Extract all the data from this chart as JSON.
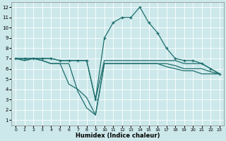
{
  "xlabel": "Humidex (Indice chaleur)",
  "xlim": [
    -0.5,
    23.5
  ],
  "ylim": [
    0.5,
    12.5
  ],
  "xticks": [
    0,
    1,
    2,
    3,
    4,
    5,
    6,
    7,
    8,
    9,
    10,
    11,
    12,
    13,
    14,
    15,
    16,
    17,
    18,
    19,
    20,
    21,
    22,
    23
  ],
  "yticks": [
    1,
    2,
    3,
    4,
    5,
    6,
    7,
    8,
    9,
    10,
    11,
    12
  ],
  "bg_color": "#cce8ea",
  "grid_color": "#b0d4d8",
  "line_color": "#1e6e6e",
  "line1_x": [
    0,
    1,
    2,
    3,
    4,
    5,
    6,
    7,
    8,
    9,
    10,
    11,
    12,
    13,
    14,
    15,
    16,
    17,
    18,
    19,
    20,
    21,
    22,
    23
  ],
  "line1_y": [
    7.0,
    7.0,
    7.0,
    7.0,
    7.0,
    6.8,
    6.8,
    6.8,
    6.8,
    3.0,
    9.0,
    10.5,
    11.0,
    11.0,
    12.0,
    10.5,
    9.5,
    8.0,
    7.0,
    6.8,
    6.8,
    6.5,
    6.0,
    5.5
  ],
  "line2_x": [
    0,
    1,
    2,
    3,
    4,
    5,
    6,
    7,
    8,
    9,
    10,
    11,
    12,
    13,
    14,
    15,
    16,
    17,
    18,
    19,
    20,
    21,
    22,
    23
  ],
  "line2_y": [
    7.0,
    7.0,
    7.0,
    7.0,
    7.0,
    6.8,
    6.8,
    6.8,
    6.8,
    3.0,
    6.8,
    6.8,
    6.8,
    6.8,
    6.8,
    6.8,
    6.8,
    6.8,
    6.8,
    6.5,
    6.5,
    6.5,
    6.0,
    5.5
  ],
  "line3_x": [
    0,
    1,
    2,
    3,
    4,
    5,
    6,
    7,
    8,
    9,
    10,
    11,
    12,
    13,
    14,
    15,
    16,
    17,
    18,
    19,
    20,
    21,
    22,
    23
  ],
  "line3_y": [
    7.0,
    6.8,
    7.0,
    6.8,
    6.5,
    6.5,
    4.5,
    4.0,
    3.2,
    1.5,
    6.5,
    6.5,
    6.5,
    6.5,
    6.5,
    6.5,
    6.5,
    6.5,
    6.3,
    6.0,
    6.0,
    6.0,
    5.7,
    5.5
  ],
  "line4_x": [
    0,
    1,
    2,
    3,
    4,
    5,
    6,
    7,
    8,
    9,
    10,
    11,
    12,
    13,
    14,
    15,
    16,
    17,
    18,
    19,
    20,
    21,
    22,
    23
  ],
  "line4_y": [
    7.0,
    6.8,
    7.0,
    6.8,
    6.5,
    6.5,
    6.5,
    3.8,
    2.2,
    1.5,
    6.5,
    6.5,
    6.5,
    6.5,
    6.5,
    6.5,
    6.5,
    6.2,
    6.0,
    5.8,
    5.8,
    5.5,
    5.5,
    5.5
  ]
}
